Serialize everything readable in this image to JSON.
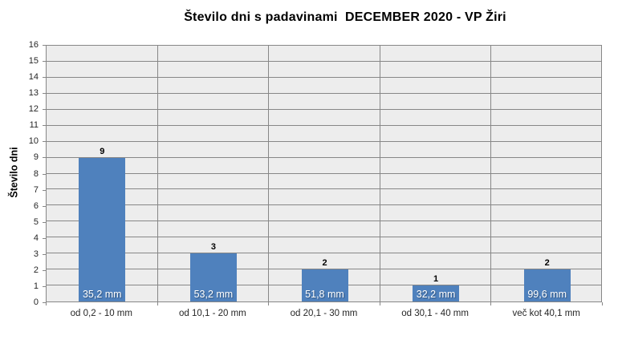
{
  "chart_data": {
    "type": "bar",
    "title": "Število dni s padavinami  DECEMBER 2020 - VP Žiri",
    "categories": [
      "od 0,2 - 10 mm",
      "od 10,1 - 20 mm",
      "od 20,1 - 30 mm",
      "od 30,1 - 40 mm",
      "več kot 40,1 mm"
    ],
    "values": [
      9,
      3,
      2,
      1,
      2
    ],
    "bar_labels": [
      "35,2 mm",
      "53,2 mm",
      "51,8 mm",
      "32,2 mm",
      "99,6 mm"
    ],
    "xlabel": "",
    "ylabel": "Število dni",
    "ylim": [
      0,
      16
    ],
    "ytick_step": 1,
    "grid": true,
    "legend": "none",
    "colors": {
      "bar": "#4F81BD",
      "plot_background": "#EDEDED",
      "gridline": "#878787",
      "axis": "#878787",
      "title_text": "#000000",
      "tick_text": "#262626",
      "bar_label_text": "#FFFFFF",
      "value_label_text": "#000000"
    }
  }
}
